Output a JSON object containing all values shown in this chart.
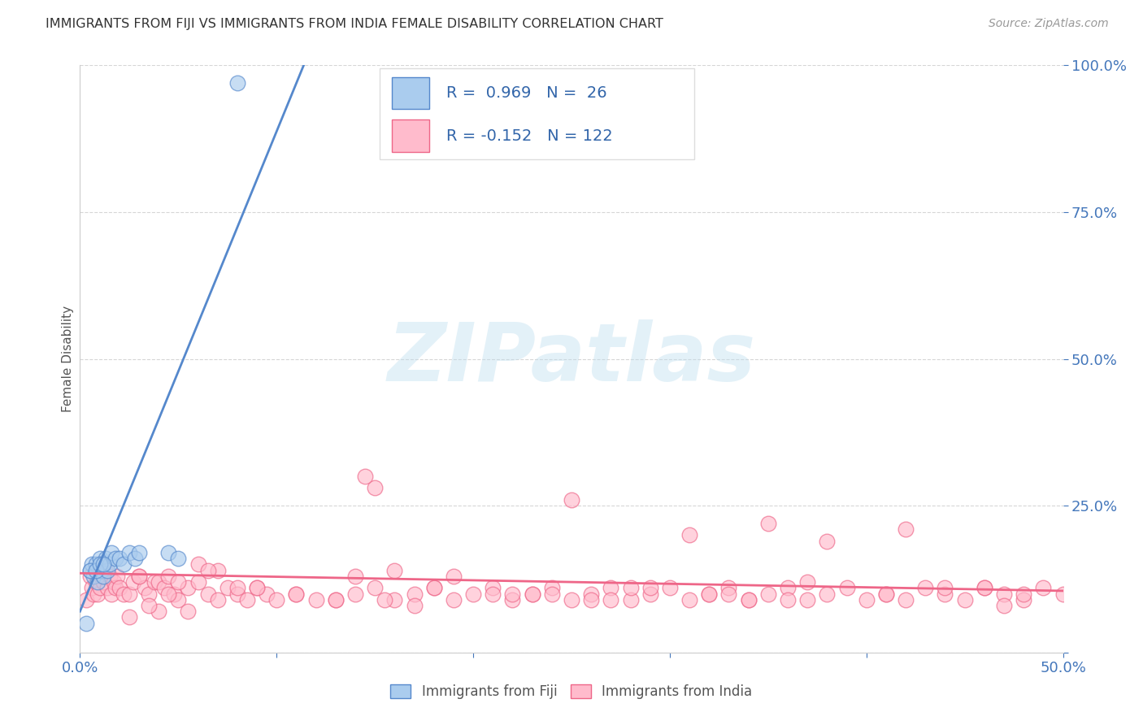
{
  "title": "IMMIGRANTS FROM FIJI VS IMMIGRANTS FROM INDIA FEMALE DISABILITY CORRELATION CHART",
  "source": "Source: ZipAtlas.com",
  "ylabel": "Female Disability",
  "xlim": [
    0.0,
    0.5
  ],
  "ylim": [
    0.0,
    1.0
  ],
  "fiji_color": "#5588CC",
  "fiji_fill": "#AACCEE",
  "india_color": "#EE6688",
  "india_fill": "#FFBBCC",
  "fiji_R": 0.969,
  "fiji_N": 26,
  "india_R": -0.152,
  "india_N": 122,
  "watermark_text": "ZIPatlas",
  "background_color": "#ffffff",
  "grid_color": "#cccccc",
  "fiji_line_x0": 0.0,
  "fiji_line_y0": 0.07,
  "fiji_line_x1": 0.115,
  "fiji_line_y1": 1.01,
  "india_line_x0": 0.0,
  "india_line_y0": 0.135,
  "india_line_x1": 0.5,
  "india_line_y1": 0.105,
  "fiji_scatter_x": [
    0.003,
    0.005,
    0.006,
    0.007,
    0.008,
    0.009,
    0.01,
    0.011,
    0.012,
    0.013,
    0.014,
    0.015,
    0.016,
    0.018,
    0.02,
    0.022,
    0.025,
    0.028,
    0.03,
    0.045,
    0.05,
    0.08,
    0.005,
    0.008,
    0.01,
    0.012
  ],
  "fiji_scatter_y": [
    0.05,
    0.14,
    0.15,
    0.13,
    0.15,
    0.12,
    0.16,
    0.14,
    0.13,
    0.16,
    0.14,
    0.15,
    0.17,
    0.16,
    0.16,
    0.15,
    0.17,
    0.16,
    0.17,
    0.17,
    0.16,
    0.97,
    0.14,
    0.14,
    0.15,
    0.15
  ],
  "india_scatter_x": [
    0.003,
    0.005,
    0.006,
    0.007,
    0.008,
    0.009,
    0.01,
    0.011,
    0.012,
    0.013,
    0.014,
    0.015,
    0.016,
    0.017,
    0.018,
    0.019,
    0.02,
    0.022,
    0.025,
    0.027,
    0.03,
    0.033,
    0.035,
    0.038,
    0.04,
    0.043,
    0.045,
    0.048,
    0.05,
    0.055,
    0.06,
    0.065,
    0.07,
    0.075,
    0.08,
    0.085,
    0.09,
    0.095,
    0.1,
    0.11,
    0.12,
    0.13,
    0.14,
    0.15,
    0.16,
    0.17,
    0.18,
    0.19,
    0.2,
    0.21,
    0.22,
    0.23,
    0.24,
    0.25,
    0.26,
    0.27,
    0.28,
    0.29,
    0.3,
    0.31,
    0.32,
    0.33,
    0.34,
    0.35,
    0.36,
    0.37,
    0.38,
    0.39,
    0.4,
    0.41,
    0.42,
    0.43,
    0.44,
    0.45,
    0.46,
    0.47,
    0.48,
    0.49,
    0.5,
    0.15,
    0.25,
    0.35,
    0.38,
    0.42,
    0.09,
    0.21,
    0.31,
    0.05,
    0.07,
    0.03,
    0.04,
    0.06,
    0.08,
    0.11,
    0.13,
    0.17,
    0.19,
    0.23,
    0.27,
    0.29,
    0.33,
    0.37,
    0.41,
    0.47,
    0.16,
    0.18,
    0.22,
    0.26,
    0.28,
    0.32,
    0.36,
    0.44,
    0.48,
    0.14,
    0.24,
    0.34,
    0.46,
    0.025,
    0.035,
    0.045,
    0.055,
    0.065,
    0.145,
    0.155
  ],
  "india_scatter_y": [
    0.09,
    0.13,
    0.11,
    0.1,
    0.12,
    0.1,
    0.11,
    0.13,
    0.12,
    0.14,
    0.11,
    0.13,
    0.1,
    0.12,
    0.11,
    0.13,
    0.11,
    0.1,
    0.1,
    0.12,
    0.13,
    0.11,
    0.1,
    0.12,
    0.12,
    0.11,
    0.13,
    0.1,
    0.09,
    0.11,
    0.12,
    0.1,
    0.09,
    0.11,
    0.1,
    0.09,
    0.11,
    0.1,
    0.09,
    0.1,
    0.09,
    0.09,
    0.1,
    0.11,
    0.09,
    0.1,
    0.11,
    0.09,
    0.1,
    0.11,
    0.09,
    0.1,
    0.11,
    0.09,
    0.1,
    0.11,
    0.09,
    0.1,
    0.11,
    0.09,
    0.1,
    0.11,
    0.09,
    0.1,
    0.11,
    0.09,
    0.1,
    0.11,
    0.09,
    0.1,
    0.09,
    0.11,
    0.1,
    0.09,
    0.11,
    0.1,
    0.09,
    0.11,
    0.1,
    0.28,
    0.26,
    0.22,
    0.19,
    0.21,
    0.11,
    0.1,
    0.2,
    0.12,
    0.14,
    0.13,
    0.07,
    0.15,
    0.11,
    0.1,
    0.09,
    0.08,
    0.13,
    0.1,
    0.09,
    0.11,
    0.1,
    0.12,
    0.1,
    0.08,
    0.14,
    0.11,
    0.1,
    0.09,
    0.11,
    0.1,
    0.09,
    0.11,
    0.1,
    0.13,
    0.1,
    0.09,
    0.11,
    0.06,
    0.08,
    0.1,
    0.07,
    0.14,
    0.3,
    0.09
  ]
}
